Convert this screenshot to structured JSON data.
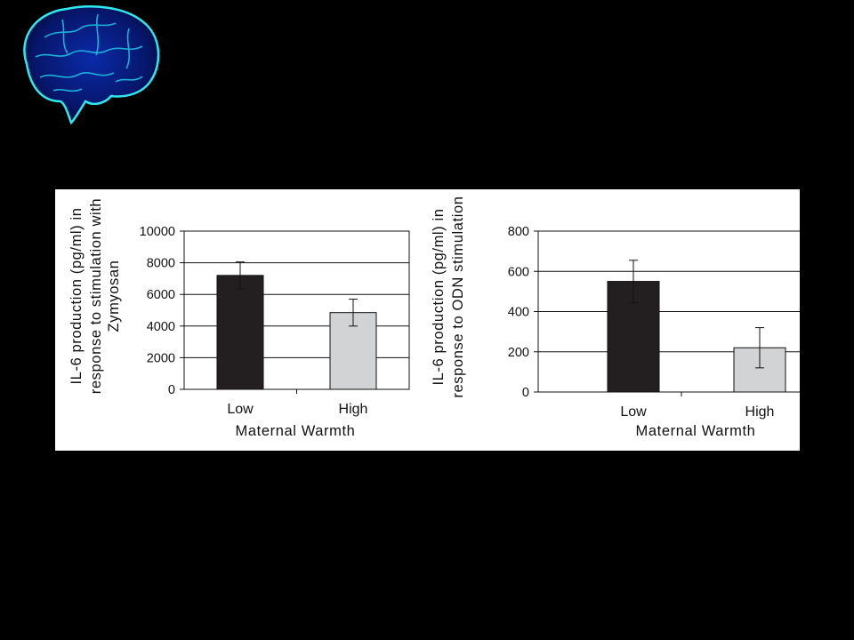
{
  "logo": {
    "icon": "brain-icon",
    "colors": {
      "fill": "#071a6e",
      "edge": "#2ee8f0"
    }
  },
  "chart_data": [
    {
      "type": "bar",
      "categories": [
        "Low",
        "High"
      ],
      "values": [
        7200,
        4850
      ],
      "error": [
        850,
        850
      ],
      "xlabel": "Maternal Warmth",
      "ylabel": [
        "IL-6 production (pg/ml) in",
        "response to stimulation with",
        "Zymyosan"
      ],
      "ylim": [
        0,
        10000
      ],
      "yticks": [
        0,
        2000,
        4000,
        6000,
        8000,
        10000
      ],
      "grid": true,
      "colors": [
        "#231f20",
        "#d1d3d4"
      ]
    },
    {
      "type": "bar",
      "categories": [
        "Low",
        "High"
      ],
      "values": [
        550,
        220
      ],
      "error": [
        105,
        100
      ],
      "xlabel": "Maternal Warmth",
      "ylabel": [
        "IL-6 production (pg/ml) in",
        "response to ODN stimulation"
      ],
      "ylim": [
        0,
        800
      ],
      "yticks": [
        0,
        200,
        400,
        600,
        800
      ],
      "grid": true,
      "colors": [
        "#231f20",
        "#d1d3d4"
      ]
    }
  ]
}
